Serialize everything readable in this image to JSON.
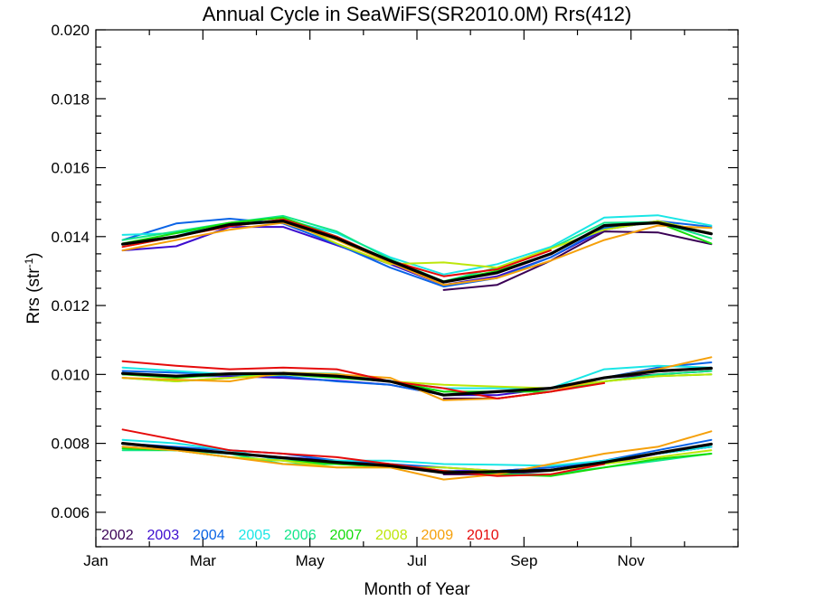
{
  "chart_data": {
    "type": "line",
    "title": "Annual Cycle in SeaWiFS(SR2010.0M) Rrs(412)",
    "xlabel": "Month of Year",
    "ylabel": "Rrs (str",
    "ylabel_superscript": "-1",
    "ylabel_suffix": ")",
    "xlim": [
      1,
      13
    ],
    "ylim": [
      0.005,
      0.02
    ],
    "x_ticks": [
      {
        "value": 1,
        "label": "Jan"
      },
      {
        "value": 3,
        "label": "Mar"
      },
      {
        "value": 5,
        "label": "May"
      },
      {
        "value": 7,
        "label": "Jul"
      },
      {
        "value": 9,
        "label": "Sep"
      },
      {
        "value": 11,
        "label": "Nov"
      }
    ],
    "y_ticks": [
      {
        "value": 0.006,
        "label": "0.006"
      },
      {
        "value": 0.008,
        "label": "0.008"
      },
      {
        "value": 0.01,
        "label": "0.010"
      },
      {
        "value": 0.012,
        "label": "0.012"
      },
      {
        "value": 0.014,
        "label": "0.014"
      },
      {
        "value": 0.016,
        "label": "0.016"
      },
      {
        "value": 0.018,
        "label": "0.018"
      },
      {
        "value": 0.02,
        "label": "0.020"
      }
    ],
    "grid": false,
    "legend_position": "bottom-left",
    "x": [
      1.5,
      2.5,
      3.5,
      4.5,
      5.5,
      6.5,
      7.5,
      8.5,
      9.5,
      10.5,
      11.5,
      12.5
    ],
    "series": [
      {
        "name": "2002",
        "color": "#3a0055",
        "groups": [
          [
            null,
            null,
            null,
            null,
            null,
            null,
            0.01245,
            0.0126,
            0.0133,
            0.01415,
            0.01412,
            0.01378
          ],
          [
            null,
            null,
            null,
            null,
            null,
            null,
            0.0093,
            0.0093,
            0.0095,
            0.0099,
            0.01,
            0.0101
          ],
          [
            null,
            null,
            null,
            null,
            null,
            null,
            0.0071,
            0.0071,
            0.0072,
            0.0074,
            0.0077,
            0.0079
          ]
        ]
      },
      {
        "name": "2003",
        "color": "#3c0ccf",
        "groups": [
          [
            0.0136,
            0.01372,
            0.01428,
            0.01428,
            0.01375,
            0.0132,
            0.0126,
            0.01285,
            0.0134,
            0.0142,
            0.01445,
            0.0141
          ],
          [
            0.01,
            0.00995,
            0.00995,
            0.0099,
            0.00982,
            0.0097,
            0.0094,
            0.0094,
            0.0096,
            0.0099,
            0.0101,
            0.0102
          ],
          [
            0.0079,
            0.0078,
            0.0077,
            0.0076,
            0.0075,
            0.0074,
            0.0072,
            0.0072,
            0.0073,
            0.0075,
            0.0077,
            0.0079
          ]
        ]
      },
      {
        "name": "2004",
        "color": "#0a64e6",
        "groups": [
          [
            0.0139,
            0.01438,
            0.01452,
            0.01438,
            0.01378,
            0.0131,
            0.01255,
            0.0128,
            0.0134,
            0.01425,
            0.01445,
            0.01428
          ],
          [
            0.0101,
            0.01005,
            0.01,
            0.00995,
            0.0098,
            0.0097,
            0.0094,
            0.0095,
            0.0096,
            0.0099,
            0.0102,
            0.01035
          ],
          [
            0.008,
            0.0079,
            0.0078,
            0.0077,
            0.0075,
            0.0074,
            0.0073,
            0.0072,
            0.0073,
            0.0075,
            0.0078,
            0.0081
          ]
        ]
      },
      {
        "name": "2005",
        "color": "#19e6e6",
        "groups": [
          [
            0.01405,
            0.0141,
            0.0143,
            0.0145,
            0.0141,
            0.0134,
            0.0129,
            0.0132,
            0.0137,
            0.01455,
            0.01462,
            0.01432
          ],
          [
            0.0102,
            0.0101,
            0.01,
            0.01,
            0.01,
            0.0098,
            0.0096,
            0.0096,
            0.0096,
            0.01015,
            0.01025,
            0.0102
          ],
          [
            0.0081,
            0.008,
            0.0078,
            0.0075,
            0.0075,
            0.0075,
            0.0074,
            0.00738,
            0.00735,
            0.0075,
            0.0077,
            0.0079
          ]
        ]
      },
      {
        "name": "2006",
        "color": "#12e68a",
        "groups": [
          [
            0.0139,
            0.01415,
            0.0144,
            0.0146,
            0.01415,
            0.01335,
            0.0127,
            0.0131,
            0.01365,
            0.0144,
            0.01442,
            0.01395
          ],
          [
            0.0099,
            0.0098,
            0.0099,
            0.01005,
            0.01002,
            0.0098,
            0.0095,
            0.0095,
            0.0096,
            0.0098,
            0.01,
            0.0101
          ],
          [
            0.0078,
            0.0078,
            0.0077,
            0.0074,
            0.0074,
            0.0074,
            0.0072,
            0.0071,
            0.0071,
            0.0073,
            0.0075,
            0.0077
          ]
        ]
      },
      {
        "name": "2007",
        "color": "#14dc0a",
        "groups": [
          [
            0.0138,
            0.0141,
            0.0144,
            0.01455,
            0.014,
            0.0133,
            0.0127,
            0.013,
            0.0135,
            0.0143,
            0.0144,
            0.0138
          ],
          [
            0.01,
            0.0099,
            0.01,
            0.01,
            0.0099,
            0.0098,
            0.0095,
            0.0095,
            0.0095,
            0.0098,
            0.00995,
            0.01
          ],
          [
            0.00785,
            0.0078,
            0.0076,
            0.0075,
            0.0074,
            0.0073,
            0.0072,
            0.0071,
            0.00705,
            0.0073,
            0.00755,
            0.0077
          ]
        ]
      },
      {
        "name": "2008",
        "color": "#bde60a",
        "groups": [
          [
            0.0137,
            0.014,
            0.0143,
            0.0145,
            0.0138,
            0.0132,
            0.01325,
            0.0131,
            0.01365,
            0.0142,
            0.01445,
            0.0141
          ],
          [
            0.0099,
            0.0098,
            0.0099,
            0.01,
            0.00995,
            0.0098,
            0.0097,
            0.00965,
            0.0096,
            0.0098,
            0.00995,
            0.01
          ],
          [
            0.0079,
            0.0078,
            0.0076,
            0.0075,
            0.0073,
            0.0073,
            0.0073,
            0.0072,
            0.0072,
            0.0074,
            0.0076,
            0.0078
          ]
        ]
      },
      {
        "name": "2009",
        "color": "#f5a00a",
        "groups": [
          [
            0.0136,
            0.0139,
            0.0142,
            0.0144,
            0.0139,
            0.01325,
            0.0126,
            0.0128,
            0.0133,
            0.0139,
            0.01432,
            0.01425
          ],
          [
            0.0099,
            0.00985,
            0.0098,
            0.01005,
            0.01,
            0.0099,
            0.00925,
            0.0093,
            0.0095,
            0.0099,
            0.01015,
            0.0105
          ],
          [
            0.0079,
            0.0078,
            0.0076,
            0.0074,
            0.0073,
            0.0073,
            0.00695,
            0.0071,
            0.0074,
            0.0077,
            0.0079,
            0.00835
          ]
        ]
      },
      {
        "name": "2010",
        "color": "#e60a0a",
        "groups": [
          [
            0.0137,
            0.014,
            0.0143,
            0.0145,
            0.014,
            0.0133,
            0.01285,
            0.01305,
            0.0136,
            null,
            null,
            null
          ],
          [
            0.01038,
            0.01025,
            0.01015,
            0.0102,
            0.01015,
            0.0098,
            0.0096,
            0.0093,
            0.0095,
            0.00975,
            null,
            null
          ],
          [
            0.0084,
            0.0081,
            0.0078,
            0.0077,
            0.0076,
            0.0074,
            0.0072,
            0.00705,
            0.0071,
            0.0074,
            null,
            null
          ]
        ]
      },
      {
        "name": "",
        "color": "#000000",
        "mean": true,
        "groups": [
          [
            0.01378,
            0.014,
            0.01435,
            0.01445,
            0.01395,
            0.0133,
            0.01268,
            0.01295,
            0.0135,
            0.01432,
            0.0144,
            0.01408
          ],
          [
            0.01003,
            0.00995,
            0.01002,
            0.01003,
            0.00995,
            0.0098,
            0.0094,
            0.0095,
            0.0096,
            0.0099,
            0.0101,
            0.01018
          ],
          [
            0.008,
            0.00785,
            0.00772,
            0.00758,
            0.00745,
            0.00735,
            0.00715,
            0.00718,
            0.00722,
            0.00745,
            0.00772,
            0.00798
          ]
        ]
      }
    ]
  }
}
